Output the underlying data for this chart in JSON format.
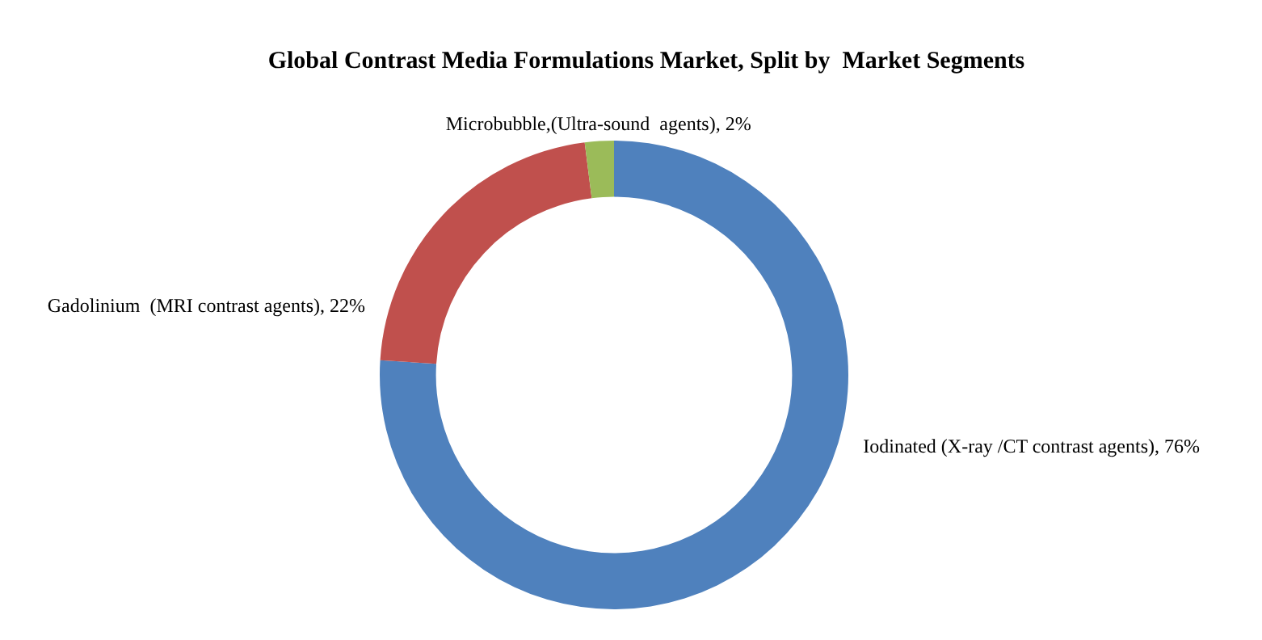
{
  "chart_data": {
    "type": "donut",
    "title": "Global Contrast Media Formulations Market, Split by  Market Segments",
    "categories": [
      "Iodinated (X-ray /CT contrast agents)",
      "Gadolinium  (MRI contrast agents)",
      "Microbubble,(Ultra-sound  agents)"
    ],
    "value_labels": [
      "76%",
      "22%",
      "2%"
    ],
    "values": [
      76,
      22,
      2
    ],
    "colors": [
      "#4f81bd",
      "#c0504d",
      "#9bbb59"
    ],
    "legend": false
  }
}
